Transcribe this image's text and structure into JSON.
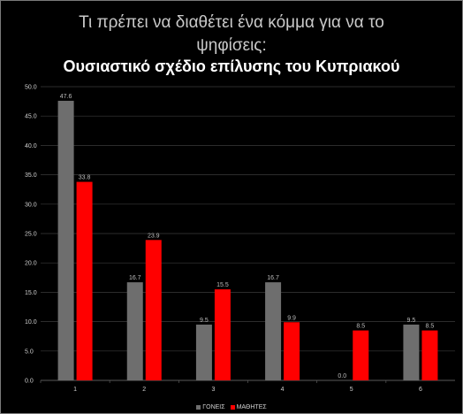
{
  "title": "Τι πρέπει να διαθέτει ένα κόμμα για να το",
  "title_line2": "ψηφίσεις:",
  "subtitle": "Ουσιαστικό σχέδιο επίλυσης του Κυπριακού",
  "colors": {
    "background": "#000000",
    "goneis": "#6e6e6e",
    "mathites": "#ff0000",
    "grid": "#3a3a3a"
  },
  "chart_data": {
    "type": "bar",
    "title": "Τι πρέπει να διαθέτει ένα κόμμα για να το ψηφίσεις: Ουσιαστικό σχέδιο επίλυσης του Κυπριακού",
    "categories": [
      "1",
      "2",
      "3",
      "4",
      "5",
      "6"
    ],
    "series": [
      {
        "name": "ΓΟΝΕΙΣ",
        "values": [
          47.6,
          16.7,
          9.5,
          16.7,
          0.0,
          9.5
        ],
        "labels": [
          "47.6",
          "16.7",
          "9.5",
          "16.7",
          "0.0",
          "9.5"
        ]
      },
      {
        "name": "ΜΑΘΗΤΕΣ",
        "values": [
          33.8,
          23.9,
          15.5,
          9.9,
          8.5,
          8.5
        ],
        "labels": [
          "33.8",
          "23.9",
          "15.5",
          "9.9",
          "8.5",
          "8.5"
        ]
      }
    ],
    "ylim": [
      0,
      50
    ],
    "yticks": [
      0,
      5,
      10,
      15,
      20,
      25,
      30,
      35,
      40,
      45,
      50
    ],
    "ytick_labels": [
      "0.0",
      "5.0",
      "10.0",
      "15.0",
      "20.0",
      "25.0",
      "30.0",
      "35.0",
      "40.0",
      "45.0",
      "50.0"
    ],
    "grid": true,
    "legend": "bottom"
  }
}
